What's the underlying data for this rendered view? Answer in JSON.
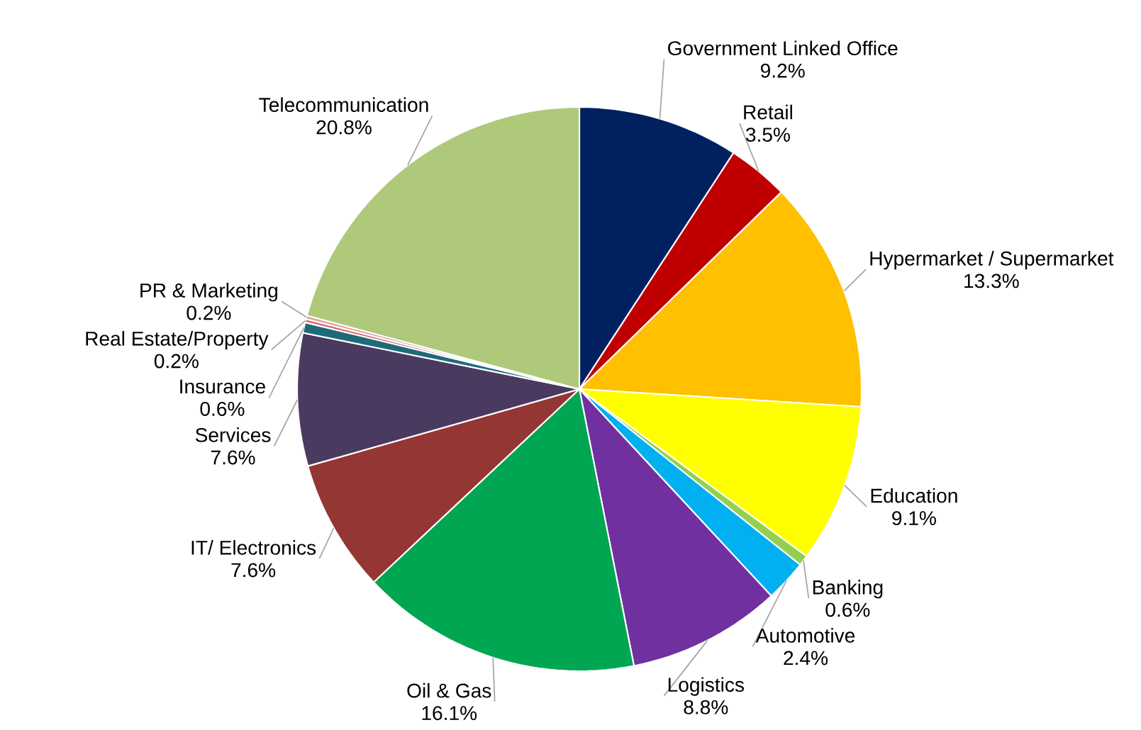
{
  "chart_data": {
    "type": "pie",
    "categories": [
      "Government Linked Office",
      "Retail",
      "Hypermarket / Supermarket",
      "Education",
      "Banking",
      "Automotive",
      "Logistics",
      "Oil & Gas",
      "IT/ Electronics",
      "Services",
      "Insurance",
      "Real Estate/Property",
      "PR & Marketing",
      "Telecommunication"
    ],
    "values": [
      9.2,
      3.5,
      13.3,
      9.1,
      0.6,
      2.4,
      8.8,
      16.1,
      7.6,
      7.6,
      0.6,
      0.2,
      0.2,
      20.8
    ],
    "value_labels": [
      "9.2%",
      "3.5%",
      "13.3%",
      "9.1%",
      "0.6%",
      "2.4%",
      "8.8%",
      "16.1%",
      "7.6%",
      "7.6%",
      "0.6%",
      "0.2%",
      "0.2%",
      "20.8%"
    ],
    "colors": [
      "#002060",
      "#c00000",
      "#ffc000",
      "#ffff00",
      "#92d050",
      "#00b0f0",
      "#7030a0",
      "#00a651",
      "#943634",
      "#4b3a5f",
      "#1f6a7a",
      "#e06666",
      "#d9a0a0",
      "#afc97b"
    ]
  }
}
